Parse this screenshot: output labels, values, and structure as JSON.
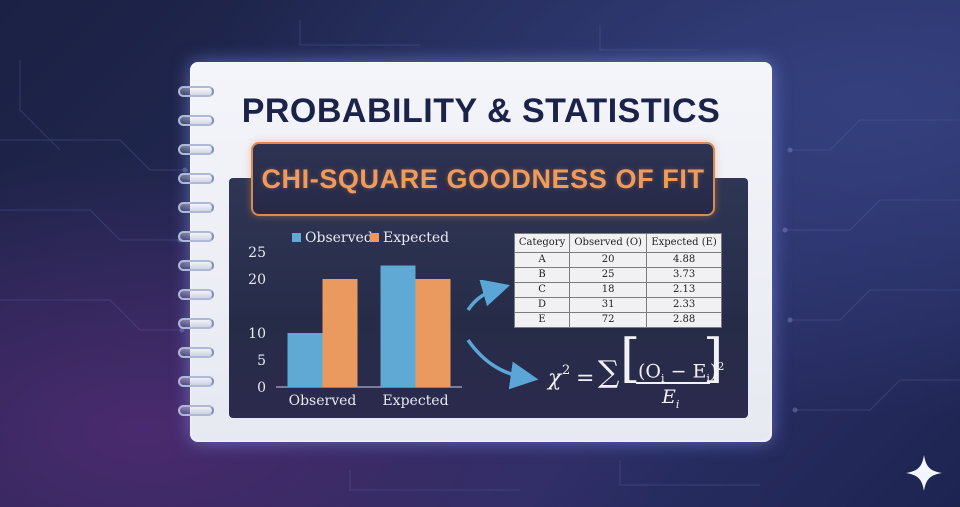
{
  "title": "PROBABILITY & STATISTICS",
  "subtitle": "CHI-SQUARE GOODNESS OF FIT",
  "chart_data": {
    "type": "bar",
    "categories": [
      "Observed",
      "Expected"
    ],
    "series": [
      {
        "name": "Observed",
        "values": [
          10,
          22.5
        ],
        "color": "#5fa9d4"
      },
      {
        "name": "Expected",
        "values": [
          20,
          20
        ],
        "color": "#eb9a5f"
      }
    ],
    "yticks": [
      "0",
      "5",
      "10",
      "20",
      "25"
    ],
    "ylim": [
      0,
      25
    ],
    "legend_position": "top",
    "grid": false
  },
  "table": {
    "headers": [
      "Category",
      "Observed (O)",
      "Expected (E)"
    ],
    "rows": [
      [
        "A",
        "20",
        "4.88"
      ],
      [
        "B",
        "25",
        "3.73"
      ],
      [
        "C",
        "18",
        "2.13"
      ],
      [
        "D",
        "31",
        "2.33"
      ],
      [
        "E",
        "72",
        "2.88"
      ]
    ]
  },
  "formula": {
    "chi": "χ",
    "exp": "2",
    "eq": "=",
    "sum": "∑",
    "numerator": "(O",
    "numerator_sub": "i",
    "minus": " − E",
    "minus_sub": "i",
    "close": ")",
    "close_exp": "2",
    "denominator": "E",
    "denominator_sub": "i"
  },
  "colors": {
    "observed": "#5fa9d4",
    "expected": "#eb9a5f",
    "accent": "#f09a5c",
    "title": "#1c2348"
  },
  "icons": [
    "arrow-right-icon",
    "sparkle-icon"
  ]
}
